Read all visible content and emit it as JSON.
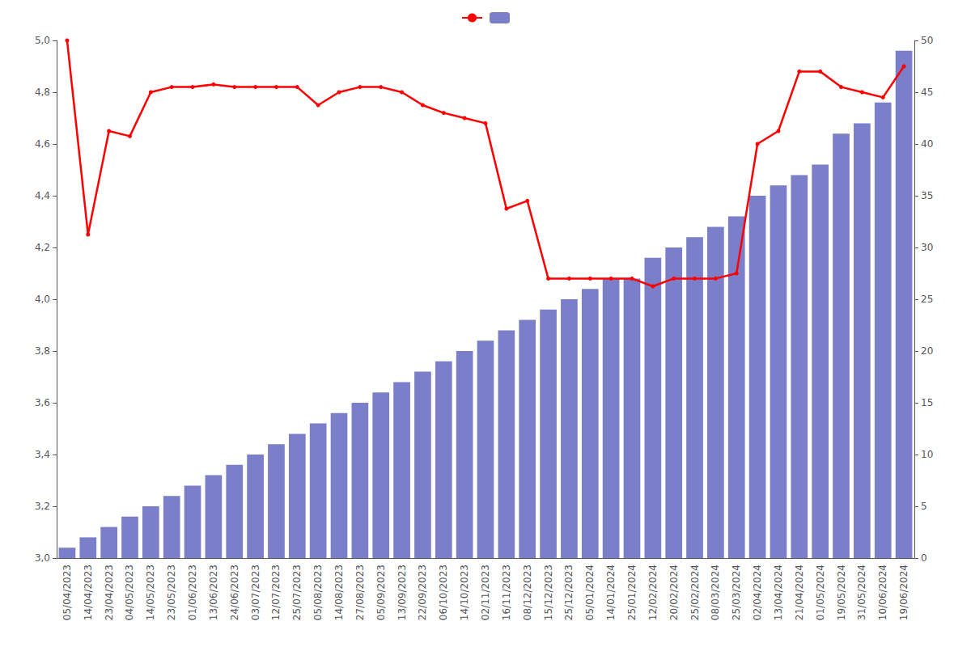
{
  "chart_data": {
    "type": "bar",
    "categories": [
      "05/04/2023",
      "14/04/2023",
      "23/04/2023",
      "04/05/2023",
      "14/05/2023",
      "23/05/2023",
      "01/06/2023",
      "13/06/2023",
      "24/06/2023",
      "03/07/2023",
      "12/07/2023",
      "25/07/2023",
      "05/08/2023",
      "14/08/2023",
      "27/08/2023",
      "05/09/2023",
      "13/09/2023",
      "22/09/2023",
      "06/10/2023",
      "14/10/2023",
      "02/11/2023",
      "16/11/2023",
      "08/12/2023",
      "15/12/2023",
      "25/12/2023",
      "05/01/2024",
      "14/01/2024",
      "25/01/2024",
      "12/02/2024",
      "20/02/2024",
      "25/02/2024",
      "08/03/2024",
      "25/03/2024",
      "02/04/2024",
      "13/04/2024",
      "21/04/2024",
      "01/05/2024",
      "19/05/2024",
      "31/05/2024",
      "10/06/2024",
      "19/06/2024"
    ],
    "series": [
      {
        "type": "line",
        "color": "#ff0000",
        "marker": "circle",
        "values": [
          5.0,
          4.25,
          4.65,
          4.63,
          4.8,
          4.82,
          4.82,
          4.83,
          4.82,
          4.82,
          4.82,
          4.82,
          4.75,
          4.8,
          4.82,
          4.82,
          4.8,
          4.75,
          4.72,
          4.7,
          4.68,
          4.35,
          4.38,
          4.08,
          4.08,
          4.08,
          4.08,
          4.08,
          4.05,
          4.08,
          4.08,
          4.08,
          4.1,
          4.6,
          4.65,
          4.88,
          4.88,
          4.82,
          4.8,
          4.78,
          4.9
        ]
      },
      {
        "type": "bar",
        "axis": "y2",
        "color": "#7b7ec8",
        "values": [
          1,
          2,
          3,
          4,
          5,
          6,
          7,
          8,
          9,
          10,
          11,
          12,
          13,
          14,
          15,
          16,
          17,
          18,
          19,
          20,
          21,
          22,
          23,
          24,
          25,
          26,
          27,
          27,
          29,
          30,
          31,
          32,
          33,
          35,
          36,
          37,
          38,
          41,
          42,
          44,
          49
        ]
      }
    ],
    "ylim": [
      3.0,
      5.0
    ],
    "yticks": [
      {
        "value": 3.0,
        "label": "3,0"
      },
      {
        "value": 3.2,
        "label": "3,2"
      },
      {
        "value": 3.4,
        "label": "3,4"
      },
      {
        "value": 3.6,
        "label": "3,6"
      },
      {
        "value": 3.8,
        "label": "3,8"
      },
      {
        "value": 4.0,
        "label": "4,0"
      },
      {
        "value": 4.2,
        "label": "4,2"
      },
      {
        "value": 4.4,
        "label": "4,4"
      },
      {
        "value": 4.6,
        "label": "4,6"
      },
      {
        "value": 4.8,
        "label": "4,8"
      },
      {
        "value": 5.0,
        "label": "5,0"
      }
    ],
    "y2lim": [
      0,
      50
    ],
    "y2ticks": [
      0,
      5,
      10,
      15,
      20,
      25,
      30,
      35,
      40,
      45,
      50
    ],
    "grid": false,
    "legend": "top"
  }
}
